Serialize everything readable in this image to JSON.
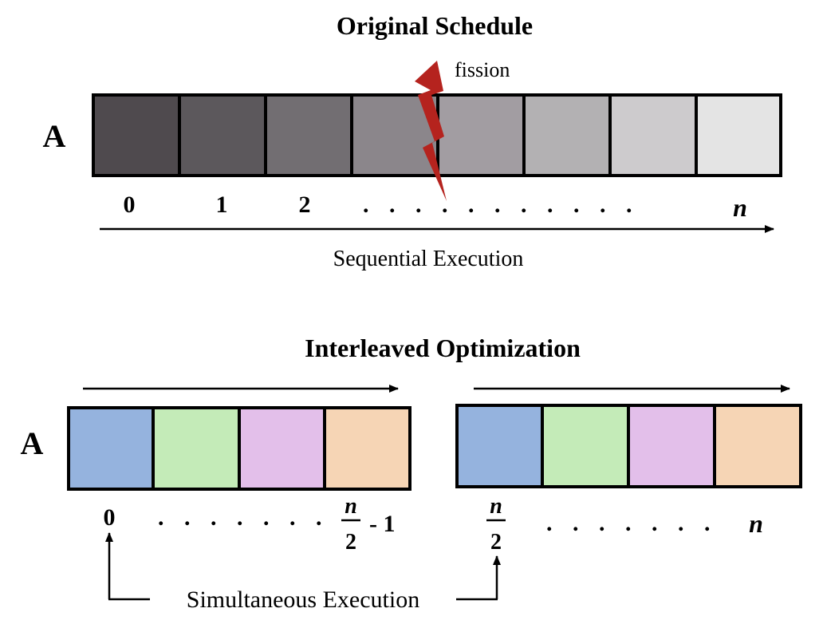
{
  "top": {
    "title": "Original Schedule",
    "array_label": "A",
    "fission_label": "fission",
    "cells": [
      {
        "color": "#4f4a4e"
      },
      {
        "color": "#5c585c"
      },
      {
        "color": "#726e72"
      },
      {
        "color": "#8b868b"
      },
      {
        "color": "#a29da2"
      },
      {
        "color": "#b3b1b3"
      },
      {
        "color": "#cdcbcd"
      },
      {
        "color": "#e4e4e4"
      }
    ],
    "index_labels": [
      "0",
      "1",
      "2",
      "n"
    ],
    "dots": ". . . . . . . . . . .",
    "axis_label": "Sequential Execution"
  },
  "bottom": {
    "title": "Interleaved Optimization",
    "array_label": "A",
    "left_cells": [
      {
        "color": "#95b3de"
      },
      {
        "color": "#c4ebb8"
      },
      {
        "color": "#e3bfea"
      },
      {
        "color": "#f6d5b5"
      }
    ],
    "right_cells": [
      {
        "color": "#95b3de"
      },
      {
        "color": "#c4ebb8"
      },
      {
        "color": "#e3bfea"
      },
      {
        "color": "#f6d5b5"
      }
    ],
    "left_start_label": "0",
    "left_dots": ". . . . . . .",
    "left_end_numerator": "n",
    "left_end_denominator": "2",
    "left_end_suffix": "- 1",
    "right_start_numerator": "n",
    "right_start_denominator": "2",
    "right_dots": ". . . . . . .",
    "right_end_label": "n",
    "bracket_label": "Simultaneous Execution"
  },
  "colors": {
    "stroke": "#000000",
    "lightning": "#b5231e"
  }
}
